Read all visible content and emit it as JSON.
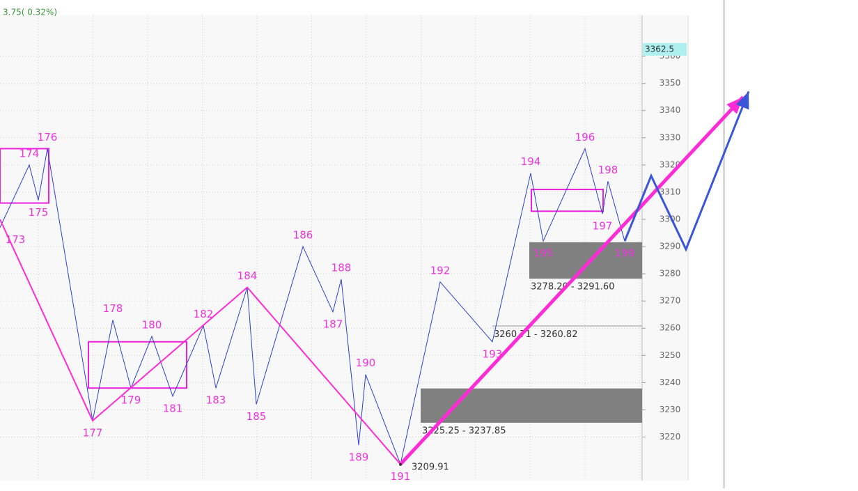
{
  "chart_data": {
    "type": "line",
    "subtitle": "3.75( 0.32%)",
    "xlim": [
      0,
      270
    ],
    "ylim": [
      3204,
      3375
    ],
    "yticks": [
      3220,
      3230,
      3240,
      3250,
      3260,
      3270,
      3280,
      3290,
      3300,
      3310,
      3320,
      3330,
      3340,
      3350,
      3360
    ],
    "grid": true,
    "last_price": 3362.5,
    "series": [
      {
        "color": "#2a3fd0",
        "x": [
          0,
          10.5,
          13.75,
          17,
          33.25,
          40.5,
          47,
          54.5,
          62,
          73,
          77.5,
          88.75,
          92,
          108.75,
          119.5,
          122.5,
          128.75,
          131.25,
          143.75,
          158,
          176.75,
          190.5,
          195,
          210,
          216.25,
          218.25,
          224.25
        ],
        "values": [
          3297,
          3320,
          3307,
          3326,
          3226,
          3263,
          3238,
          3257,
          3235,
          3261,
          3238,
          3275,
          3232,
          3290,
          3266,
          3278,
          3217,
          3243,
          3210,
          3277,
          3255,
          3317,
          3292,
          3326,
          3302,
          3314,
          3292
        ],
        "point_labels": [
          "173",
          "174",
          "175",
          "176",
          "177",
          "178",
          "179",
          "180",
          "181",
          "182",
          "183",
          "184",
          "185",
          "186",
          "187",
          "188",
          "189",
          "190",
          "191",
          "192",
          "193",
          "194",
          "195",
          "196",
          "197",
          "198",
          "199"
        ]
      },
      {
        "color": "#ff2bd6",
        "x": [
          0,
          33.25,
          88.75,
          143.75
        ],
        "values": [
          3300,
          3226,
          3275,
          3210
        ]
      },
      {
        "color": "#ff2bd6",
        "x": [
          143.75,
          266.75
        ],
        "values": [
          3210,
          3345
        ],
        "arrow": true
      },
      {
        "color": "#3a55d8",
        "x": [
          224.25,
          233.75,
          246.25,
          268.75
        ],
        "values": [
          3292,
          3316,
          3289,
          3347
        ],
        "arrow": true
      }
    ],
    "boxes": [
      {
        "x": [
          0,
          17.5
        ],
        "range": [
          3306,
          3326
        ]
      },
      {
        "x": [
          31.75,
          67
        ],
        "range": [
          3238,
          3255
        ]
      },
      {
        "x": [
          190.75,
          216.5
        ],
        "range": [
          3303,
          3311
        ]
      }
    ],
    "zones": [
      {
        "x": [
          151,
          230.5
        ],
        "low": 3225.25,
        "high": 3237.85,
        "label": "3225.25 - 3237.85"
      },
      {
        "x": [
          176.75,
          230.5
        ],
        "low": 3260.71,
        "high": 3260.82,
        "label": "3260.71 - 3260.82"
      },
      {
        "x": [
          190,
          230.5
        ],
        "low": 3278.2,
        "high": 3291.6,
        "label": "3278.20 - 3291.60"
      }
    ],
    "low_point": {
      "x": 143.75,
      "value": 3209.91
    }
  }
}
